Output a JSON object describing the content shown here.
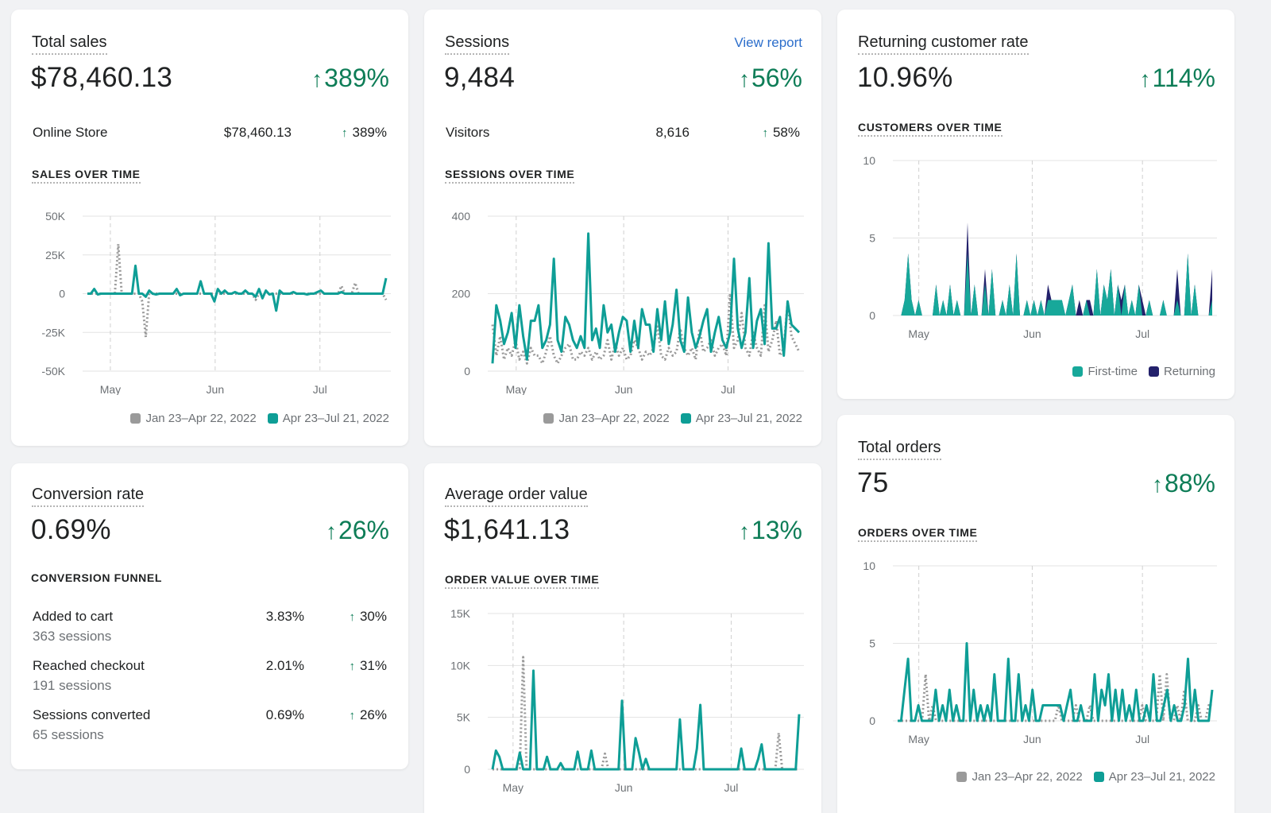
{
  "colors": {
    "current": "#0e9e96",
    "previous": "#9a9a9a",
    "first_time": "#17a89a",
    "returning": "#23216b",
    "positive": "#0e7d57",
    "link": "#2c6ecb"
  },
  "legend": {
    "previous": "Jan 23–Apr 22, 2022",
    "current": "Apr 23–Jul 21, 2022"
  },
  "total_sales": {
    "title": "Total sales",
    "value": "$78,460.13",
    "change": "389%",
    "row": {
      "label": "Online Store",
      "value": "$78,460.13",
      "change": "389%"
    },
    "section": "SALES OVER TIME"
  },
  "sessions": {
    "title": "Sessions",
    "view_report": "View report",
    "value": "9,484",
    "change": "56%",
    "row": {
      "label": "Visitors",
      "value": "8,616",
      "change": "58%"
    },
    "section": "SESSIONS OVER TIME"
  },
  "returning": {
    "title": "Returning customer rate",
    "value": "10.96%",
    "change": "114%",
    "section": "CUSTOMERS OVER TIME",
    "legend_first": "First-time",
    "legend_returning": "Returning"
  },
  "conversion": {
    "title": "Conversion rate",
    "value": "0.69%",
    "change": "26%",
    "section": "CONVERSION FUNNEL",
    "rows": [
      {
        "label": "Added to cart",
        "sub": "363 sessions",
        "value": "3.83%",
        "change": "30%"
      },
      {
        "label": "Reached checkout",
        "sub": "191 sessions",
        "value": "2.01%",
        "change": "31%"
      },
      {
        "label": "Sessions converted",
        "sub": "65 sessions",
        "value": "0.69%",
        "change": "26%"
      }
    ]
  },
  "aov": {
    "title": "Average order value",
    "value": "$1,641.13",
    "change": "13%",
    "section": "ORDER VALUE OVER TIME"
  },
  "orders": {
    "title": "Total orders",
    "value": "75",
    "change": "88%",
    "section": "ORDERS OVER TIME"
  },
  "chart_data": [
    {
      "id": "sales",
      "type": "line",
      "yticks": [
        "50K",
        "25K",
        "0",
        "-25K",
        "-50K"
      ],
      "ylim": [
        -50000,
        50000
      ],
      "xticks": [
        {
          "label": "May",
          "x": 0.09
        },
        {
          "label": "Jun",
          "x": 0.43
        },
        {
          "label": "Jul",
          "x": 0.77
        }
      ],
      "series": [
        {
          "name": "Apr 23–Jul 21, 2022",
          "role": "current",
          "values": [
            0,
            0,
            3000,
            -500,
            0,
            0,
            0,
            0,
            0,
            0,
            0,
            0,
            0,
            0,
            18000,
            0,
            0,
            -2000,
            2000,
            0,
            -500,
            0,
            0,
            0,
            0,
            0,
            3000,
            -1000,
            0,
            0,
            0,
            0,
            0,
            8000,
            0,
            0,
            0,
            -5000,
            3000,
            0,
            2000,
            0,
            0,
            1000,
            0,
            0,
            2000,
            0,
            0,
            -2000,
            3000,
            -3000,
            2000,
            -500,
            0,
            -11000,
            2000,
            0,
            0,
            0,
            1000,
            0,
            0,
            0,
            -500,
            0,
            0,
            1000,
            2000,
            0,
            0,
            0,
            0,
            0,
            1000,
            0,
            0,
            0,
            0,
            0,
            0,
            0,
            0,
            0,
            0,
            0,
            0,
            10000
          ]
        },
        {
          "name": "Jan 23–Apr 22, 2022",
          "role": "previous",
          "values": [
            0,
            0,
            0,
            0,
            0,
            0,
            0,
            0,
            0,
            32000,
            0,
            0,
            0,
            0,
            0,
            0,
            -5000,
            -28000,
            0,
            0,
            0,
            0,
            0,
            0,
            0,
            0,
            0,
            0,
            0,
            0,
            0,
            0,
            0,
            0,
            0,
            0,
            0,
            0,
            0,
            0,
            0,
            0,
            0,
            0,
            0,
            0,
            0,
            0,
            0,
            -4000,
            0,
            0,
            0,
            0,
            0,
            0,
            0,
            0,
            0,
            0,
            0,
            0,
            0,
            0,
            0,
            0,
            0,
            0,
            0,
            0,
            0,
            0,
            0,
            0,
            5000,
            0,
            0,
            0,
            7000,
            0,
            0,
            0,
            0,
            0,
            0,
            0,
            0,
            -4000
          ]
        }
      ]
    },
    {
      "id": "sessions",
      "type": "line",
      "yticks": [
        "400",
        "200",
        "0"
      ],
      "ylim": [
        0,
        400
      ],
      "xticks": [
        {
          "label": "May",
          "x": 0.09
        },
        {
          "label": "Jun",
          "x": 0.43
        },
        {
          "label": "Jul",
          "x": 0.76
        }
      ],
      "series": [
        {
          "name": "Apr 23–Jul 21, 2022",
          "role": "current",
          "values": [
            20,
            170,
            130,
            70,
            100,
            150,
            60,
            170,
            90,
            30,
            130,
            130,
            170,
            60,
            80,
            120,
            290,
            80,
            50,
            140,
            120,
            80,
            60,
            90,
            60,
            355,
            80,
            110,
            60,
            170,
            100,
            120,
            50,
            100,
            140,
            130,
            50,
            130,
            60,
            160,
            120,
            120,
            50,
            160,
            80,
            180,
            70,
            120,
            210,
            80,
            50,
            190,
            100,
            60,
            90,
            130,
            160,
            50,
            100,
            140,
            80,
            60,
            100,
            290,
            110,
            60,
            100,
            240,
            60,
            130,
            160,
            70,
            330,
            110,
            110,
            140,
            40,
            180,
            120,
            110,
            100
          ]
        },
        {
          "name": "Jan 23–Apr 22, 2022",
          "role": "previous",
          "values": [
            120,
            40,
            90,
            30,
            60,
            40,
            80,
            30,
            50,
            20,
            60,
            40,
            40,
            20,
            50,
            90,
            40,
            20,
            40,
            60,
            70,
            30,
            30,
            50,
            40,
            60,
            30,
            50,
            30,
            40,
            80,
            30,
            70,
            40,
            60,
            30,
            40,
            80,
            60,
            30,
            50,
            40,
            60,
            120,
            40,
            30,
            60,
            40,
            50,
            110,
            60,
            40,
            60,
            30,
            110,
            50,
            60,
            80,
            40,
            60,
            70,
            40,
            200,
            60,
            80,
            150,
            60,
            40,
            100,
            60,
            40,
            170,
            50,
            80,
            130,
            40,
            60,
            180,
            90,
            70,
            50
          ]
        }
      ]
    },
    {
      "id": "customers",
      "type": "area",
      "yticks": [
        "10",
        "5",
        "0"
      ],
      "ylim": [
        0,
        10
      ],
      "xticks": [
        {
          "label": "May",
          "x": 0.08
        },
        {
          "label": "Jun",
          "x": 0.43
        },
        {
          "label": "Jul",
          "x": 0.77
        }
      ],
      "series": [
        {
          "name": "First-time",
          "role": "first",
          "values": [
            0,
            0,
            1,
            4,
            1,
            0,
            1,
            0,
            0,
            0,
            0,
            2,
            0,
            1,
            0,
            2,
            0,
            1,
            0,
            0,
            4,
            0,
            2,
            0,
            0,
            2,
            0,
            3,
            0,
            0,
            1,
            0,
            2,
            0,
            4,
            0,
            0,
            1,
            0,
            1,
            0,
            1,
            0,
            1,
            1,
            1,
            1,
            1,
            0,
            1,
            2,
            0,
            0,
            0,
            1,
            0,
            0,
            3,
            0,
            2,
            1,
            3,
            0,
            2,
            0,
            2,
            0,
            1,
            0,
            2,
            0,
            0,
            1,
            0,
            0,
            0,
            1,
            0,
            0,
            0,
            1,
            0,
            0,
            4,
            0,
            2,
            0,
            0,
            0,
            0,
            1
          ]
        },
        {
          "name": "Returning",
          "role": "returning",
          "values": [
            0,
            0,
            0,
            0,
            0,
            0,
            0,
            0,
            0,
            0,
            0,
            0,
            0,
            0,
            0,
            0,
            0,
            0,
            0,
            0,
            2,
            0,
            0,
            0,
            0,
            1,
            0,
            0,
            0,
            0,
            0,
            0,
            0,
            0,
            0,
            0,
            0,
            0,
            0,
            0,
            0,
            0,
            0,
            1,
            0,
            0,
            0,
            0,
            0,
            0,
            0,
            0,
            1,
            0,
            0,
            1,
            0,
            0,
            0,
            0,
            0,
            0,
            0,
            0,
            1,
            0,
            0,
            0,
            0,
            0,
            1,
            0,
            0,
            0,
            0,
            0,
            0,
            0,
            0,
            0,
            2,
            0,
            0,
            0,
            0,
            0,
            0,
            0,
            0,
            0,
            2
          ]
        }
      ]
    },
    {
      "id": "aov",
      "type": "line",
      "yticks": [
        "15K",
        "10K",
        "5K",
        "0"
      ],
      "ylim": [
        0,
        15000
      ],
      "xticks": [
        {
          "label": "May",
          "x": 0.08
        },
        {
          "label": "Jun",
          "x": 0.43
        },
        {
          "label": "Jul",
          "x": 0.77
        }
      ],
      "series": [
        {
          "name": "Apr 23–Jul 21, 2022",
          "role": "current",
          "values": [
            0,
            1800,
            1200,
            0,
            0,
            0,
            0,
            0,
            1600,
            0,
            0,
            0,
            9500,
            0,
            0,
            0,
            1200,
            0,
            0,
            0,
            600,
            0,
            0,
            0,
            0,
            1700,
            0,
            0,
            0,
            1800,
            0,
            0,
            0,
            0,
            0,
            0,
            0,
            0,
            6600,
            0,
            0,
            0,
            3000,
            1600,
            0,
            1000,
            0,
            0,
            0,
            0,
            0,
            0,
            0,
            0,
            0,
            4800,
            0,
            0,
            0,
            0,
            2000,
            6200,
            0,
            0,
            0,
            0,
            0,
            0,
            0,
            0,
            0,
            0,
            0,
            2000,
            0,
            0,
            0,
            0,
            1000,
            2400,
            0,
            0,
            0,
            0,
            0,
            0,
            0,
            0,
            0,
            0,
            5300
          ]
        },
        {
          "name": "Jan 23–Apr 22, 2022",
          "role": "previous",
          "values": [
            0,
            0,
            0,
            0,
            0,
            0,
            0,
            0,
            0,
            10800,
            0,
            0,
            0,
            0,
            0,
            0,
            0,
            0,
            0,
            0,
            0,
            0,
            0,
            0,
            0,
            0,
            0,
            0,
            0,
            0,
            0,
            0,
            0,
            1500,
            0,
            0,
            0,
            0,
            0,
            0,
            0,
            0,
            0,
            0,
            0,
            0,
            0,
            0,
            0,
            0,
            0,
            0,
            0,
            0,
            0,
            0,
            0,
            0,
            0,
            0,
            0,
            0,
            0,
            0,
            0,
            0,
            0,
            0,
            0,
            0,
            0,
            0,
            0,
            0,
            0,
            0,
            0,
            0,
            0,
            0,
            0,
            0,
            0,
            0,
            3500,
            0,
            0,
            0,
            0,
            0,
            0
          ]
        }
      ]
    },
    {
      "id": "orders",
      "type": "line",
      "yticks": [
        "10",
        "5",
        "0"
      ],
      "ylim": [
        0,
        10
      ],
      "xticks": [
        {
          "label": "May",
          "x": 0.08
        },
        {
          "label": "Jun",
          "x": 0.43
        },
        {
          "label": "Jul",
          "x": 0.77
        }
      ],
      "series": [
        {
          "name": "Apr 23–Jul 21, 2022",
          "role": "current",
          "values": [
            0,
            0,
            2,
            4,
            0,
            0,
            1,
            0,
            0,
            0,
            0,
            2,
            0,
            1,
            0,
            2,
            0,
            1,
            0,
            0,
            5,
            0,
            2,
            0,
            1,
            0,
            1,
            0,
            3,
            0,
            0,
            0,
            4,
            0,
            0,
            3,
            0,
            1,
            0,
            2,
            0,
            0,
            1,
            1,
            1,
            1,
            1,
            1,
            0,
            1,
            2,
            0,
            0,
            1,
            0,
            0,
            0,
            3,
            0,
            2,
            1,
            3,
            0,
            2,
            0,
            2,
            0,
            1,
            0,
            2,
            0,
            0,
            1,
            0,
            3,
            0,
            0,
            1,
            2,
            0,
            1,
            0,
            0,
            1,
            4,
            0,
            2,
            0,
            0,
            0,
            0,
            2
          ]
        },
        {
          "name": "Jan 23–Apr 22, 2022",
          "role": "previous",
          "values": [
            0,
            0,
            0,
            0,
            0,
            0,
            0,
            0,
            3,
            0,
            1,
            0,
            0,
            0,
            0,
            0,
            0,
            0,
            0,
            0,
            0,
            0,
            0,
            0,
            0,
            0,
            0,
            0,
            0,
            0,
            0,
            0,
            0,
            0,
            0,
            0,
            0,
            0,
            0,
            0,
            0,
            0,
            0,
            0,
            0,
            0,
            1,
            0,
            0,
            0,
            0,
            1,
            0,
            0,
            0,
            1,
            0,
            0,
            0,
            0,
            0,
            0,
            0,
            0,
            0,
            0,
            0,
            0,
            0,
            0,
            1,
            0,
            0,
            0,
            0,
            3,
            0,
            3,
            0,
            0,
            1,
            0,
            2,
            0,
            0,
            0,
            1,
            0,
            0,
            1,
            1
          ]
        }
      ]
    }
  ]
}
